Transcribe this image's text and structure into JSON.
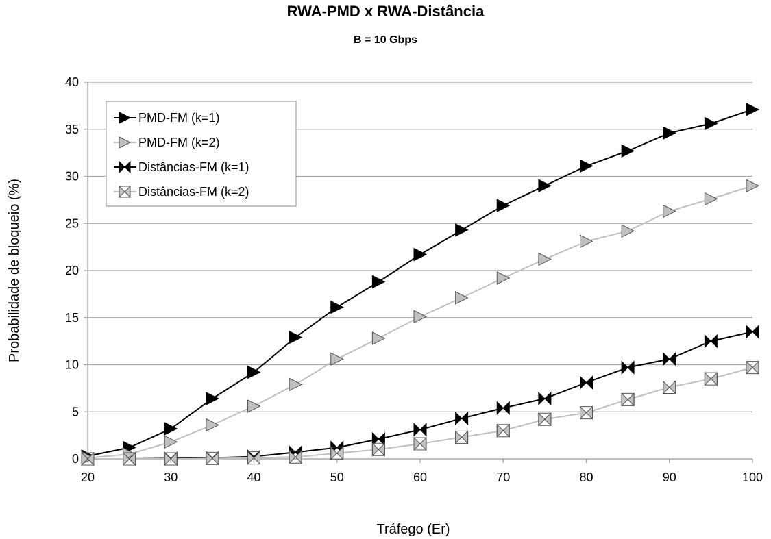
{
  "chart_data": {
    "type": "line",
    "title": "RWA-PMD x RWA-Distância",
    "subtitle": "B = 10 Gbps",
    "xlabel": "Tráfego (Er)",
    "ylabel": "Probabilidade de bloqueio (%)",
    "xlim": [
      20,
      100
    ],
    "ylim": [
      0,
      40
    ],
    "x_ticks": [
      20,
      30,
      40,
      50,
      60,
      70,
      80,
      90,
      100
    ],
    "y_ticks": [
      0,
      5,
      10,
      15,
      20,
      25,
      30,
      35,
      40
    ],
    "grid": "horizontal",
    "legend_position": "top-left",
    "x": [
      20,
      25,
      30,
      35,
      40,
      45,
      50,
      55,
      60,
      65,
      70,
      75,
      80,
      85,
      90,
      95,
      100
    ],
    "series": [
      {
        "name": "PMD-FM (k=1)",
        "color": "#000000",
        "marker": "triangle-right-filled-black",
        "values": [
          0.3,
          1.2,
          3.2,
          6.4,
          9.2,
          12.9,
          16.1,
          18.8,
          21.7,
          24.3,
          26.9,
          29.0,
          31.1,
          32.7,
          34.6,
          35.6,
          37.1
        ]
      },
      {
        "name": "PMD-FM (k=2)",
        "color": "#c0c0c0",
        "marker": "triangle-right-filled-gray",
        "values": [
          0.1,
          0.5,
          1.8,
          3.6,
          5.6,
          7.9,
          10.6,
          12.8,
          15.1,
          17.1,
          19.2,
          21.2,
          23.1,
          24.2,
          26.3,
          27.6,
          29.0
        ]
      },
      {
        "name": "Distâncias-FM (k=1)",
        "color": "#000000",
        "marker": "bowtie-black",
        "values": [
          0.0,
          0.0,
          0.05,
          0.1,
          0.25,
          0.7,
          1.2,
          2.1,
          3.1,
          4.3,
          5.4,
          6.4,
          8.1,
          9.7,
          10.6,
          12.5,
          13.5
        ]
      },
      {
        "name": "Distâncias-FM (k=2)",
        "color": "#c0c0c0",
        "marker": "bowtie-gray",
        "values": [
          0.0,
          0.0,
          0.0,
          0.05,
          0.1,
          0.2,
          0.6,
          1.0,
          1.6,
          2.3,
          3.0,
          4.2,
          4.9,
          6.3,
          7.6,
          8.5,
          9.7
        ]
      }
    ]
  }
}
